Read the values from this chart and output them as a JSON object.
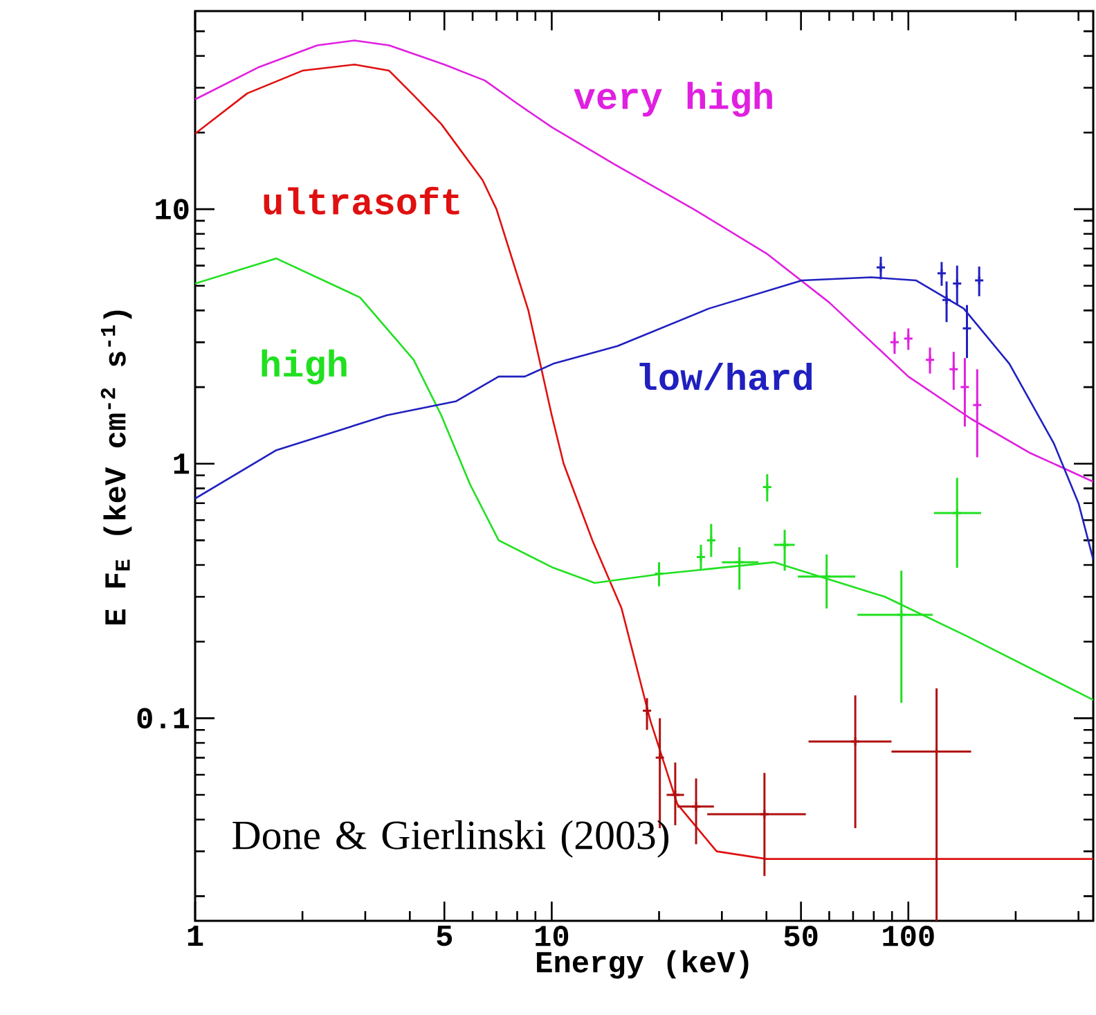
{
  "chart_data": {
    "type": "line",
    "xlabel": "Energy (keV)",
    "ylabel": "E F$_{E}$ (keV cm$^{-2}$ s$^{-1}$)",
    "log": "xy",
    "xlim": [
      1,
      330
    ],
    "ylim": [
      0.016,
      60
    ],
    "xticks": [
      1,
      {
        "value": 2,
        "label": null
      },
      {
        "value": 3,
        "label": null
      },
      {
        "value": 4,
        "label": null
      },
      5,
      {
        "value": 6,
        "label": null
      },
      {
        "value": 7,
        "label": null
      },
      {
        "value": 8,
        "label": null
      },
      {
        "value": 9,
        "label": null
      },
      10,
      {
        "value": 20,
        "label": null
      },
      {
        "value": 30,
        "label": null
      },
      {
        "value": 40,
        "label": null
      },
      50,
      {
        "value": 60,
        "label": null
      },
      {
        "value": 70,
        "label": null
      },
      {
        "value": 80,
        "label": null
      },
      {
        "value": 90,
        "label": null
      },
      100,
      {
        "value": 200,
        "label": null
      },
      {
        "value": 300,
        "label": null
      }
    ],
    "yticks": [
      {
        "value": 0.02,
        "label": null
      },
      {
        "value": 0.03,
        "label": null
      },
      {
        "value": 0.04,
        "label": null
      },
      {
        "value": 0.05,
        "label": null
      },
      {
        "value": 0.06,
        "label": null
      },
      {
        "value": 0.07,
        "label": null
      },
      {
        "value": 0.08,
        "label": null
      },
      {
        "value": 0.09,
        "label": null
      },
      0.1,
      {
        "value": 0.2,
        "label": null
      },
      {
        "value": 0.3,
        "label": null
      },
      {
        "value": 0.4,
        "label": null
      },
      {
        "value": 0.5,
        "label": null
      },
      {
        "value": 0.6,
        "label": null
      },
      {
        "value": 0.7,
        "label": null
      },
      {
        "value": 0.8,
        "label": null
      },
      {
        "value": 0.9,
        "label": null
      },
      1,
      {
        "value": 2,
        "label": null
      },
      {
        "value": 3,
        "label": null
      },
      {
        "value": 4,
        "label": null
      },
      {
        "value": 5,
        "label": null
      },
      {
        "value": 6,
        "label": null
      },
      {
        "value": 7,
        "label": null
      },
      {
        "value": 8,
        "label": null
      },
      {
        "value": 9,
        "label": null
      },
      10,
      {
        "value": 20,
        "label": null
      },
      {
        "value": 30,
        "label": null
      },
      {
        "value": 40,
        "label": null
      },
      {
        "value": 50,
        "label": null
      }
    ],
    "series": [
      {
        "name": "very high",
        "color": "#e020e0",
        "x": [
          1,
          1.5,
          2.2,
          2.8,
          3.5,
          5,
          6.5,
          8,
          10,
          15,
          25,
          40,
          60,
          100,
          150,
          220,
          330
        ],
        "values": [
          27,
          36,
          44,
          46,
          44,
          37,
          32,
          26,
          21,
          15,
          10,
          6.7,
          4.3,
          2.2,
          1.5,
          1.1,
          0.85
        ]
      },
      {
        "name": "ultrasoft",
        "color": "#e01010",
        "x": [
          1,
          1.4,
          2,
          2.8,
          3.5,
          4.1,
          4.9,
          6.4,
          7,
          8.6,
          10,
          10.8,
          13,
          15.7,
          18.9,
          22.5,
          29,
          40,
          100,
          330
        ],
        "values": [
          19.8,
          28.5,
          35,
          37,
          35,
          28,
          21.6,
          13,
          10,
          4,
          1.55,
          1,
          0.5,
          0.27,
          0.098,
          0.046,
          0.03,
          0.028,
          0.028,
          0.028
        ]
      },
      {
        "name": "high",
        "color": "#20e020",
        "x": [
          1,
          1.69,
          2.9,
          4.1,
          4.9,
          5.9,
          7.1,
          10.1,
          13.2,
          20.6,
          42,
          86,
          146,
          330
        ],
        "values": [
          5.1,
          6.4,
          4.5,
          2.56,
          1.55,
          0.83,
          0.5,
          0.39,
          0.34,
          0.37,
          0.41,
          0.3,
          0.21,
          0.118
        ]
      },
      {
        "name": "low/hard",
        "color": "#2020c0",
        "x": [
          1,
          1.69,
          3.45,
          5.4,
          7.1,
          8.4,
          10.1,
          15.3,
          27.6,
          50.3,
          78.7,
          105,
          143,
          192,
          256,
          300,
          330
        ],
        "values": [
          0.73,
          1.13,
          1.55,
          1.76,
          2.2,
          2.2,
          2.47,
          2.9,
          4.07,
          5.25,
          5.4,
          5.25,
          4.07,
          2.47,
          1.2,
          0.7,
          0.42
        ]
      },
      {
        "type": "scatter",
        "marker": "cross",
        "color": "#e020e0",
        "x": [
          91.5,
          100,
          115,
          134,
          144,
          156
        ],
        "values": [
          3.0,
          3.1,
          2.56,
          2.35,
          2.0,
          1.7
        ],
        "errors": [
          0.3,
          0.3,
          0.3,
          0.4,
          0.6,
          [
            1.06,
            2.35
          ]
        ]
      },
      {
        "type": "scatter",
        "marker": "cross",
        "color": "#b01010",
        "x": [
          18.5,
          20.1,
          22.2,
          25.4,
          39.5,
          71,
          120
        ],
        "values": [
          0.107,
          0.07,
          0.05,
          0.045,
          0.042,
          0.081,
          0.074
        ],
        "errors": [
          [
            0.09,
            0.12
          ],
          [
            0.037,
            0.1
          ],
          [
            0.038,
            0.067
          ],
          [
            0.032,
            0.058
          ],
          [
            0.024,
            0.061
          ],
          [
            0.037,
            0.123
          ],
          [
            0.016,
            0.131
          ]
        ],
        "xerrors": [
          null,
          null,
          [
            21,
            23.5
          ],
          [
            22.5,
            28.5
          ],
          [
            27.3,
            51.6
          ],
          [
            52.5,
            89.7
          ],
          [
            89.7,
            150
          ]
        ]
      },
      {
        "type": "scatter",
        "marker": "cross",
        "color": "#20e020",
        "x": [
          20,
          26.2,
          28,
          33.6,
          40.2,
          45,
          59,
          95.6,
          137
        ],
        "values": [
          0.37,
          0.43,
          0.5,
          0.41,
          0.81,
          0.48,
          0.36,
          0.255,
          0.64
        ],
        "errors": [
          0.04,
          0.05,
          [
            0.43,
            0.58
          ],
          [
            0.32,
            0.47
          ],
          0.1,
          [
            0.38,
            0.55
          ],
          [
            0.27,
            0.44
          ],
          [
            0.115,
            0.38
          ],
          [
            0.39,
            0.88
          ]
        ],
        "xerrors": [
          null,
          null,
          null,
          [
            30,
            38
          ],
          null,
          [
            42,
            48
          ],
          [
            49,
            71
          ],
          [
            72,
            117
          ],
          [
            118,
            160
          ]
        ]
      },
      {
        "type": "scatter",
        "marker": "cross",
        "color": "#2020c0",
        "x": [
          83.7,
          124,
          128,
          137,
          146,
          158
        ],
        "values": [
          5.9,
          5.6,
          4.4,
          5.1,
          3.4,
          5.25
        ],
        "errors": [
          0.6,
          0.6,
          0.8,
          0.9,
          0.8,
          0.7
        ]
      }
    ],
    "annotations": [
      "Done & Gierlinski (2003)"
    ]
  }
}
